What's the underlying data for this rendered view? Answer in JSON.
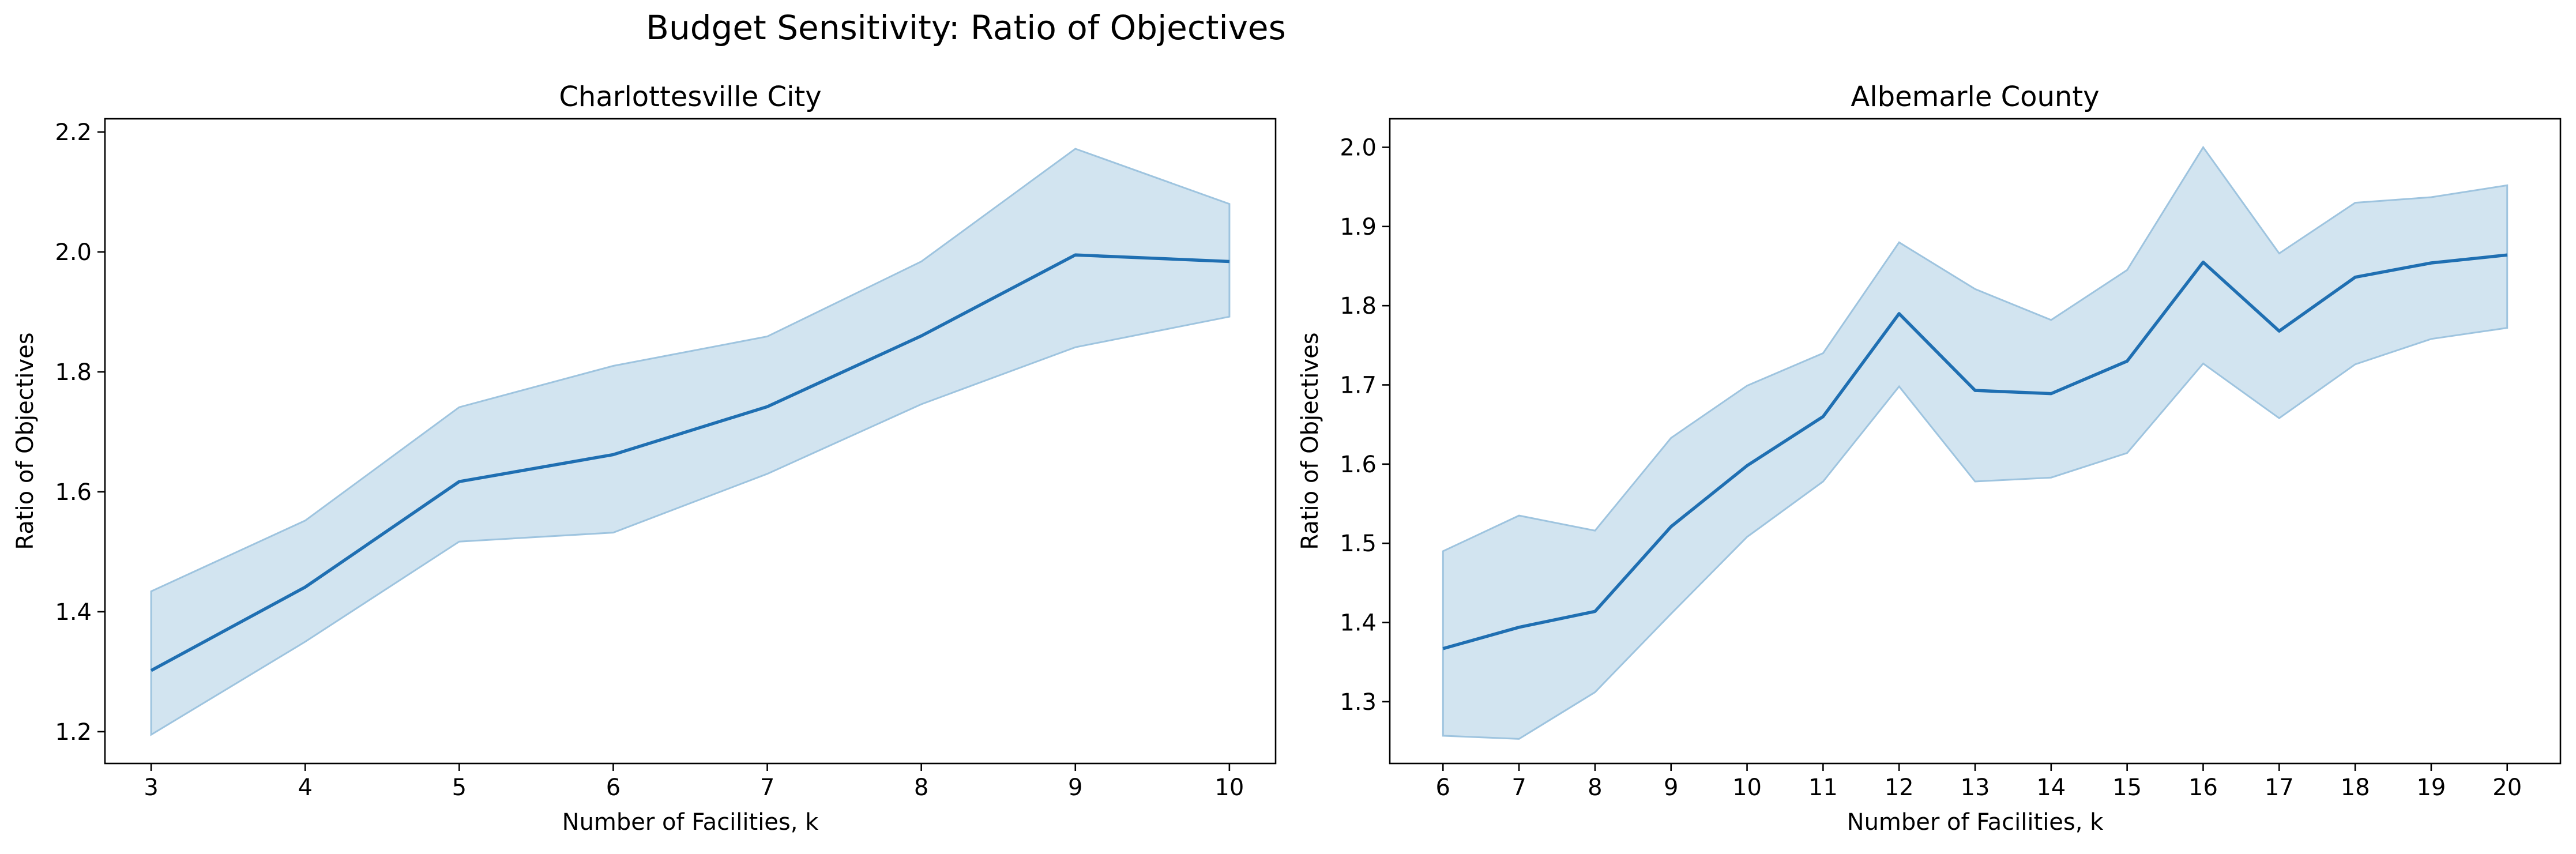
{
  "suptitle": "Budget Sensitivity: Ratio of Objectives",
  "colors": {
    "line": "#1f6fb2",
    "band": "#a9cce3",
    "band_edge": "#9ec4df",
    "axis": "#000000"
  },
  "chart_data": [
    {
      "type": "line",
      "title": "Charlottesville City",
      "xlabel": "Number of Facilities, k",
      "ylabel": "Ratio of Objectives",
      "x": [
        3,
        4,
        5,
        6,
        7,
        8,
        9,
        10
      ],
      "series": [
        {
          "values": [
            1.302,
            1.441,
            1.617,
            1.662,
            1.742,
            1.86,
            1.995,
            1.984
          ],
          "lower": [
            1.195,
            1.35,
            1.517,
            1.532,
            1.63,
            1.746,
            1.841,
            1.892
          ],
          "upper": [
            1.434,
            1.552,
            1.741,
            1.81,
            1.859,
            1.984,
            2.172,
            2.08
          ]
        }
      ],
      "xlim": [
        2.7,
        10.3
      ],
      "ylim": [
        1.147,
        2.222
      ],
      "xticks": [
        3,
        4,
        5,
        6,
        7,
        8,
        9,
        10
      ],
      "yticks": [
        1.2,
        1.4,
        1.6,
        1.8,
        2.0,
        2.2
      ],
      "ytick_labels": [
        "1.2",
        "1.4",
        "1.6",
        "1.8",
        "2.0",
        "2.2"
      ],
      "grid": false,
      "legend": "none"
    },
    {
      "type": "line",
      "title": "Albemarle County",
      "xlabel": "Number of Facilities, k",
      "ylabel": "Ratio of Objectives",
      "x": [
        6,
        7,
        8,
        9,
        10,
        11,
        12,
        13,
        14,
        15,
        16,
        17,
        18,
        19,
        20
      ],
      "series": [
        {
          "values": [
            1.367,
            1.394,
            1.414,
            1.521,
            1.598,
            1.66,
            1.79,
            1.693,
            1.689,
            1.73,
            1.855,
            1.768,
            1.836,
            1.854,
            1.864
          ],
          "lower": [
            1.257,
            1.253,
            1.312,
            1.411,
            1.508,
            1.578,
            1.698,
            1.578,
            1.583,
            1.614,
            1.727,
            1.658,
            1.726,
            1.758,
            1.772
          ],
          "upper": [
            1.49,
            1.535,
            1.516,
            1.633,
            1.699,
            1.74,
            1.88,
            1.821,
            1.782,
            1.845,
            2.0,
            1.866,
            1.93,
            1.937,
            1.952
          ]
        }
      ],
      "xlim": [
        5.3,
        20.7
      ],
      "ylim": [
        1.222,
        2.036
      ],
      "xticks": [
        6,
        7,
        8,
        9,
        10,
        11,
        12,
        13,
        14,
        15,
        16,
        17,
        18,
        19,
        20
      ],
      "yticks": [
        1.3,
        1.4,
        1.5,
        1.6,
        1.7,
        1.8,
        1.9,
        2.0
      ],
      "ytick_labels": [
        "1.3",
        "1.4",
        "1.5",
        "1.6",
        "1.7",
        "1.8",
        "1.9",
        "2.0"
      ],
      "grid": false,
      "legend": "none"
    }
  ]
}
